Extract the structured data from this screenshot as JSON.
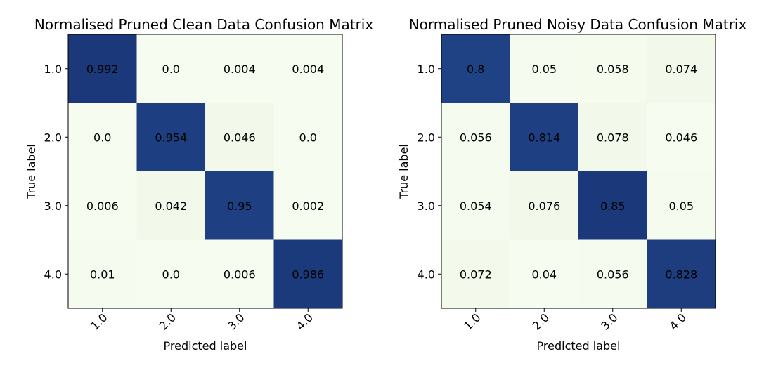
{
  "chart_data": [
    {
      "type": "heatmap",
      "title": "Normalised Pruned Clean Data Confusion Matrix",
      "xlabel": "Predicted label",
      "ylabel": "True label",
      "x_categories": [
        "1.0",
        "2.0",
        "3.0",
        "4.0"
      ],
      "y_categories": [
        "1.0",
        "2.0",
        "3.0",
        "4.0"
      ],
      "values": [
        [
          0.992,
          0.0,
          0.004,
          0.004
        ],
        [
          0.0,
          0.954,
          0.046,
          0.0
        ],
        [
          0.006,
          0.042,
          0.95,
          0.002
        ],
        [
          0.01,
          0.0,
          0.006,
          0.986
        ]
      ],
      "value_labels": [
        [
          "0.992",
          "0.0",
          "0.004",
          "0.004"
        ],
        [
          "0.0",
          "0.954",
          "0.046",
          "0.0"
        ],
        [
          "0.006",
          "0.042",
          "0.95",
          "0.002"
        ],
        [
          "0.01",
          "0.0",
          "0.006",
          "0.986"
        ]
      ],
      "colormap": "GnBu",
      "grid": false
    },
    {
      "type": "heatmap",
      "title": "Normalised Pruned Noisy Data Confusion Matrix",
      "xlabel": "Predicted label",
      "ylabel": "True label",
      "x_categories": [
        "1.0",
        "2.0",
        "3.0",
        "4.0"
      ],
      "y_categories": [
        "1.0",
        "2.0",
        "3.0",
        "4.0"
      ],
      "values": [
        [
          0.8,
          0.05,
          0.058,
          0.074
        ],
        [
          0.056,
          0.814,
          0.078,
          0.046
        ],
        [
          0.054,
          0.076,
          0.85,
          0.05
        ],
        [
          0.072,
          0.04,
          0.056,
          0.828
        ]
      ],
      "value_labels": [
        [
          "0.8",
          "0.05",
          "0.058",
          "0.074"
        ],
        [
          "0.056",
          "0.814",
          "0.078",
          "0.046"
        ],
        [
          "0.054",
          "0.076",
          "0.85",
          "0.05"
        ],
        [
          "0.072",
          "0.04",
          "0.056",
          "0.828"
        ]
      ],
      "colormap": "GnBu",
      "grid": false
    }
  ]
}
